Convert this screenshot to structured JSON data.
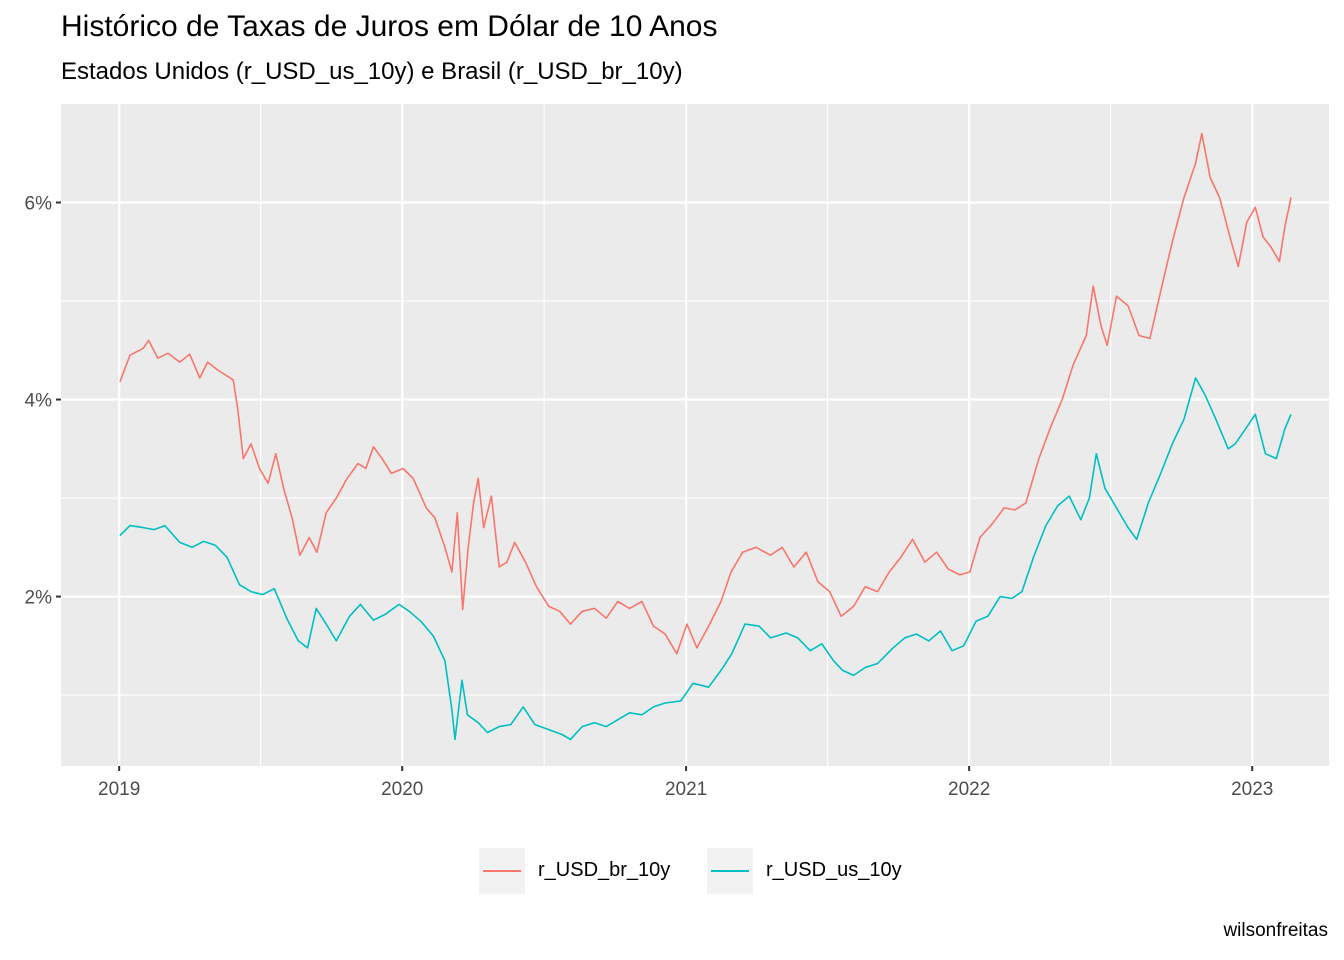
{
  "title": "Histórico de Taxas de Juros em Dólar de 10 Anos",
  "subtitle": "Estados Unidos (r_USD_us_10y) e Brasil (r_USD_br_10y)",
  "caption": "wilsonfreitas",
  "colors": {
    "panel": "#ebebeb",
    "grid": "#ffffff",
    "br": "#f8766d",
    "us": "#00bfc4"
  },
  "chart_data": {
    "type": "line",
    "title": "Histórico de Taxas de Juros em Dólar de 10 Anos",
    "subtitle": "Estados Unidos (r_USD_us_10y) e Brasil (r_USD_br_10y)",
    "xlabel": "",
    "ylabel": "",
    "x_type": "date",
    "xlim": [
      "2018-10-18",
      "2023-04-10"
    ],
    "ylim": [
      0.28,
      7.0
    ],
    "x_ticks": [
      {
        "date": "2019-01-01",
        "label": "2019"
      },
      {
        "date": "2020-01-01",
        "label": "2020"
      },
      {
        "date": "2021-01-01",
        "label": "2021"
      },
      {
        "date": "2022-01-01",
        "label": "2022"
      },
      {
        "date": "2023-01-01",
        "label": "2023"
      }
    ],
    "y_ticks": [
      {
        "value": 2,
        "label": "2%"
      },
      {
        "value": 4,
        "label": "4%"
      },
      {
        "value": 6,
        "label": "6%"
      }
    ],
    "grid": true,
    "legend_position": "bottom",
    "series": [
      {
        "name": "r_USD_br_10y",
        "color": "#f8766d",
        "points": [
          [
            "2019-01-02",
            4.18
          ],
          [
            "2019-01-15",
            4.45
          ],
          [
            "2019-02-01",
            4.52
          ],
          [
            "2019-02-08",
            4.6
          ],
          [
            "2019-02-20",
            4.42
          ],
          [
            "2019-03-05",
            4.47
          ],
          [
            "2019-03-20",
            4.38
          ],
          [
            "2019-04-02",
            4.46
          ],
          [
            "2019-04-15",
            4.22
          ],
          [
            "2019-04-25",
            4.38
          ],
          [
            "2019-05-08",
            4.3
          ],
          [
            "2019-05-20",
            4.24
          ],
          [
            "2019-05-28",
            4.2
          ],
          [
            "2019-06-03",
            3.9
          ],
          [
            "2019-06-10",
            3.4
          ],
          [
            "2019-06-20",
            3.55
          ],
          [
            "2019-07-01",
            3.3
          ],
          [
            "2019-07-12",
            3.15
          ],
          [
            "2019-07-22",
            3.45
          ],
          [
            "2019-08-01",
            3.1
          ],
          [
            "2019-08-12",
            2.8
          ],
          [
            "2019-08-22",
            2.42
          ],
          [
            "2019-09-03",
            2.6
          ],
          [
            "2019-09-13",
            2.45
          ],
          [
            "2019-09-25",
            2.85
          ],
          [
            "2019-10-08",
            3.0
          ],
          [
            "2019-10-22",
            3.2
          ],
          [
            "2019-11-05",
            3.35
          ],
          [
            "2019-11-15",
            3.3
          ],
          [
            "2019-11-25",
            3.52
          ],
          [
            "2019-12-06",
            3.4
          ],
          [
            "2019-12-18",
            3.25
          ],
          [
            "2020-01-02",
            3.3
          ],
          [
            "2020-01-15",
            3.2
          ],
          [
            "2020-02-01",
            2.9
          ],
          [
            "2020-02-12",
            2.8
          ],
          [
            "2020-02-25",
            2.5
          ],
          [
            "2020-03-05",
            2.25
          ],
          [
            "2020-03-12",
            2.85
          ],
          [
            "2020-03-19",
            1.87
          ],
          [
            "2020-03-26",
            2.5
          ],
          [
            "2020-04-02",
            2.95
          ],
          [
            "2020-04-08",
            3.2
          ],
          [
            "2020-04-15",
            2.7
          ],
          [
            "2020-04-25",
            3.02
          ],
          [
            "2020-05-05",
            2.3
          ],
          [
            "2020-05-15",
            2.35
          ],
          [
            "2020-05-25",
            2.55
          ],
          [
            "2020-06-08",
            2.35
          ],
          [
            "2020-06-22",
            2.1
          ],
          [
            "2020-07-08",
            1.9
          ],
          [
            "2020-07-22",
            1.85
          ],
          [
            "2020-08-05",
            1.72
          ],
          [
            "2020-08-20",
            1.85
          ],
          [
            "2020-09-05",
            1.88
          ],
          [
            "2020-09-20",
            1.78
          ],
          [
            "2020-10-05",
            1.95
          ],
          [
            "2020-10-20",
            1.88
          ],
          [
            "2020-11-05",
            1.95
          ],
          [
            "2020-11-20",
            1.7
          ],
          [
            "2020-12-05",
            1.62
          ],
          [
            "2020-12-20",
            1.42
          ],
          [
            "2021-01-02",
            1.72
          ],
          [
            "2021-01-15",
            1.48
          ],
          [
            "2021-01-30",
            1.7
          ],
          [
            "2021-02-15",
            1.95
          ],
          [
            "2021-02-28",
            2.25
          ],
          [
            "2021-03-15",
            2.45
          ],
          [
            "2021-04-01",
            2.5
          ],
          [
            "2021-04-20",
            2.42
          ],
          [
            "2021-05-05",
            2.5
          ],
          [
            "2021-05-20",
            2.3
          ],
          [
            "2021-06-05",
            2.45
          ],
          [
            "2021-06-20",
            2.15
          ],
          [
            "2021-07-05",
            2.05
          ],
          [
            "2021-07-20",
            1.8
          ],
          [
            "2021-08-05",
            1.9
          ],
          [
            "2021-08-20",
            2.1
          ],
          [
            "2021-09-05",
            2.05
          ],
          [
            "2021-09-20",
            2.25
          ],
          [
            "2021-10-05",
            2.4
          ],
          [
            "2021-10-20",
            2.58
          ],
          [
            "2021-11-05",
            2.35
          ],
          [
            "2021-11-20",
            2.45
          ],
          [
            "2021-12-05",
            2.28
          ],
          [
            "2021-12-20",
            2.22
          ],
          [
            "2022-01-02",
            2.25
          ],
          [
            "2022-01-15",
            2.6
          ],
          [
            "2022-02-01",
            2.75
          ],
          [
            "2022-02-15",
            2.9
          ],
          [
            "2022-03-01",
            2.88
          ],
          [
            "2022-03-15",
            2.95
          ],
          [
            "2022-04-01",
            3.4
          ],
          [
            "2022-04-15",
            3.7
          ],
          [
            "2022-05-01",
            4.0
          ],
          [
            "2022-05-15",
            4.35
          ],
          [
            "2022-06-01",
            4.65
          ],
          [
            "2022-06-10",
            5.15
          ],
          [
            "2022-06-20",
            4.75
          ],
          [
            "2022-06-28",
            4.55
          ],
          [
            "2022-07-10",
            5.05
          ],
          [
            "2022-07-25",
            4.95
          ],
          [
            "2022-08-08",
            4.65
          ],
          [
            "2022-08-22",
            4.62
          ],
          [
            "2022-09-05",
            5.1
          ],
          [
            "2022-09-20",
            5.6
          ],
          [
            "2022-10-05",
            6.05
          ],
          [
            "2022-10-20",
            6.4
          ],
          [
            "2022-10-28",
            6.7
          ],
          [
            "2022-11-08",
            6.25
          ],
          [
            "2022-11-20",
            6.05
          ],
          [
            "2022-12-05",
            5.6
          ],
          [
            "2022-12-14",
            5.35
          ],
          [
            "2022-12-25",
            5.8
          ],
          [
            "2023-01-05",
            5.95
          ],
          [
            "2023-01-15",
            5.65
          ],
          [
            "2023-01-25",
            5.55
          ],
          [
            "2023-02-05",
            5.4
          ],
          [
            "2023-02-12",
            5.75
          ],
          [
            "2023-02-20",
            6.05
          ]
        ]
      },
      {
        "name": "r_USD_us_10y",
        "color": "#00bfc4",
        "points": [
          [
            "2019-01-02",
            2.62
          ],
          [
            "2019-01-15",
            2.72
          ],
          [
            "2019-02-01",
            2.7
          ],
          [
            "2019-02-15",
            2.68
          ],
          [
            "2019-03-01",
            2.72
          ],
          [
            "2019-03-20",
            2.55
          ],
          [
            "2019-04-05",
            2.5
          ],
          [
            "2019-04-20",
            2.56
          ],
          [
            "2019-05-05",
            2.52
          ],
          [
            "2019-05-20",
            2.4
          ],
          [
            "2019-06-05",
            2.12
          ],
          [
            "2019-06-20",
            2.05
          ],
          [
            "2019-07-05",
            2.02
          ],
          [
            "2019-07-20",
            2.08
          ],
          [
            "2019-08-05",
            1.78
          ],
          [
            "2019-08-20",
            1.55
          ],
          [
            "2019-09-01",
            1.48
          ],
          [
            "2019-09-12",
            1.88
          ],
          [
            "2019-09-25",
            1.72
          ],
          [
            "2019-10-08",
            1.55
          ],
          [
            "2019-10-25",
            1.8
          ],
          [
            "2019-11-08",
            1.92
          ],
          [
            "2019-11-25",
            1.76
          ],
          [
            "2019-12-10",
            1.82
          ],
          [
            "2019-12-28",
            1.92
          ],
          [
            "2020-01-10",
            1.85
          ],
          [
            "2020-01-25",
            1.75
          ],
          [
            "2020-02-10",
            1.6
          ],
          [
            "2020-02-25",
            1.35
          ],
          [
            "2020-03-05",
            0.85
          ],
          [
            "2020-03-09",
            0.55
          ],
          [
            "2020-03-18",
            1.15
          ],
          [
            "2020-03-25",
            0.8
          ],
          [
            "2020-04-08",
            0.72
          ],
          [
            "2020-04-20",
            0.62
          ],
          [
            "2020-05-05",
            0.68
          ],
          [
            "2020-05-20",
            0.7
          ],
          [
            "2020-06-05",
            0.88
          ],
          [
            "2020-06-20",
            0.7
          ],
          [
            "2020-07-08",
            0.65
          ],
          [
            "2020-07-25",
            0.6
          ],
          [
            "2020-08-05",
            0.55
          ],
          [
            "2020-08-20",
            0.68
          ],
          [
            "2020-09-05",
            0.72
          ],
          [
            "2020-09-20",
            0.68
          ],
          [
            "2020-10-05",
            0.75
          ],
          [
            "2020-10-20",
            0.82
          ],
          [
            "2020-11-05",
            0.8
          ],
          [
            "2020-11-20",
            0.88
          ],
          [
            "2020-12-05",
            0.92
          ],
          [
            "2020-12-25",
            0.94
          ],
          [
            "2021-01-10",
            1.12
          ],
          [
            "2021-01-30",
            1.08
          ],
          [
            "2021-02-15",
            1.25
          ],
          [
            "2021-03-01",
            1.42
          ],
          [
            "2021-03-18",
            1.72
          ],
          [
            "2021-04-05",
            1.7
          ],
          [
            "2021-04-20",
            1.58
          ],
          [
            "2021-05-10",
            1.63
          ],
          [
            "2021-05-25",
            1.58
          ],
          [
            "2021-06-10",
            1.45
          ],
          [
            "2021-06-25",
            1.52
          ],
          [
            "2021-07-10",
            1.35
          ],
          [
            "2021-07-22",
            1.25
          ],
          [
            "2021-08-05",
            1.2
          ],
          [
            "2021-08-20",
            1.28
          ],
          [
            "2021-09-05",
            1.32
          ],
          [
            "2021-09-25",
            1.48
          ],
          [
            "2021-10-10",
            1.58
          ],
          [
            "2021-10-25",
            1.62
          ],
          [
            "2021-11-10",
            1.55
          ],
          [
            "2021-11-25",
            1.65
          ],
          [
            "2021-12-10",
            1.45
          ],
          [
            "2021-12-25",
            1.5
          ],
          [
            "2022-01-10",
            1.75
          ],
          [
            "2022-01-25",
            1.8
          ],
          [
            "2022-02-10",
            2.0
          ],
          [
            "2022-02-25",
            1.98
          ],
          [
            "2022-03-10",
            2.05
          ],
          [
            "2022-03-25",
            2.4
          ],
          [
            "2022-04-10",
            2.72
          ],
          [
            "2022-04-25",
            2.92
          ],
          [
            "2022-05-10",
            3.02
          ],
          [
            "2022-05-25",
            2.78
          ],
          [
            "2022-06-05",
            3.0
          ],
          [
            "2022-06-14",
            3.45
          ],
          [
            "2022-06-25",
            3.1
          ],
          [
            "2022-07-10",
            2.9
          ],
          [
            "2022-07-25",
            2.7
          ],
          [
            "2022-08-05",
            2.58
          ],
          [
            "2022-08-20",
            2.95
          ],
          [
            "2022-09-05",
            3.25
          ],
          [
            "2022-09-20",
            3.55
          ],
          [
            "2022-10-05",
            3.8
          ],
          [
            "2022-10-20",
            4.22
          ],
          [
            "2022-11-01",
            4.05
          ],
          [
            "2022-11-15",
            3.8
          ],
          [
            "2022-12-01",
            3.5
          ],
          [
            "2022-12-10",
            3.55
          ],
          [
            "2022-12-25",
            3.72
          ],
          [
            "2023-01-05",
            3.85
          ],
          [
            "2023-01-18",
            3.45
          ],
          [
            "2023-02-01",
            3.4
          ],
          [
            "2023-02-12",
            3.7
          ],
          [
            "2023-02-20",
            3.85
          ]
        ]
      }
    ]
  },
  "legend": {
    "items": [
      {
        "label": "r_USD_br_10y"
      },
      {
        "label": "r_USD_us_10y"
      }
    ]
  }
}
